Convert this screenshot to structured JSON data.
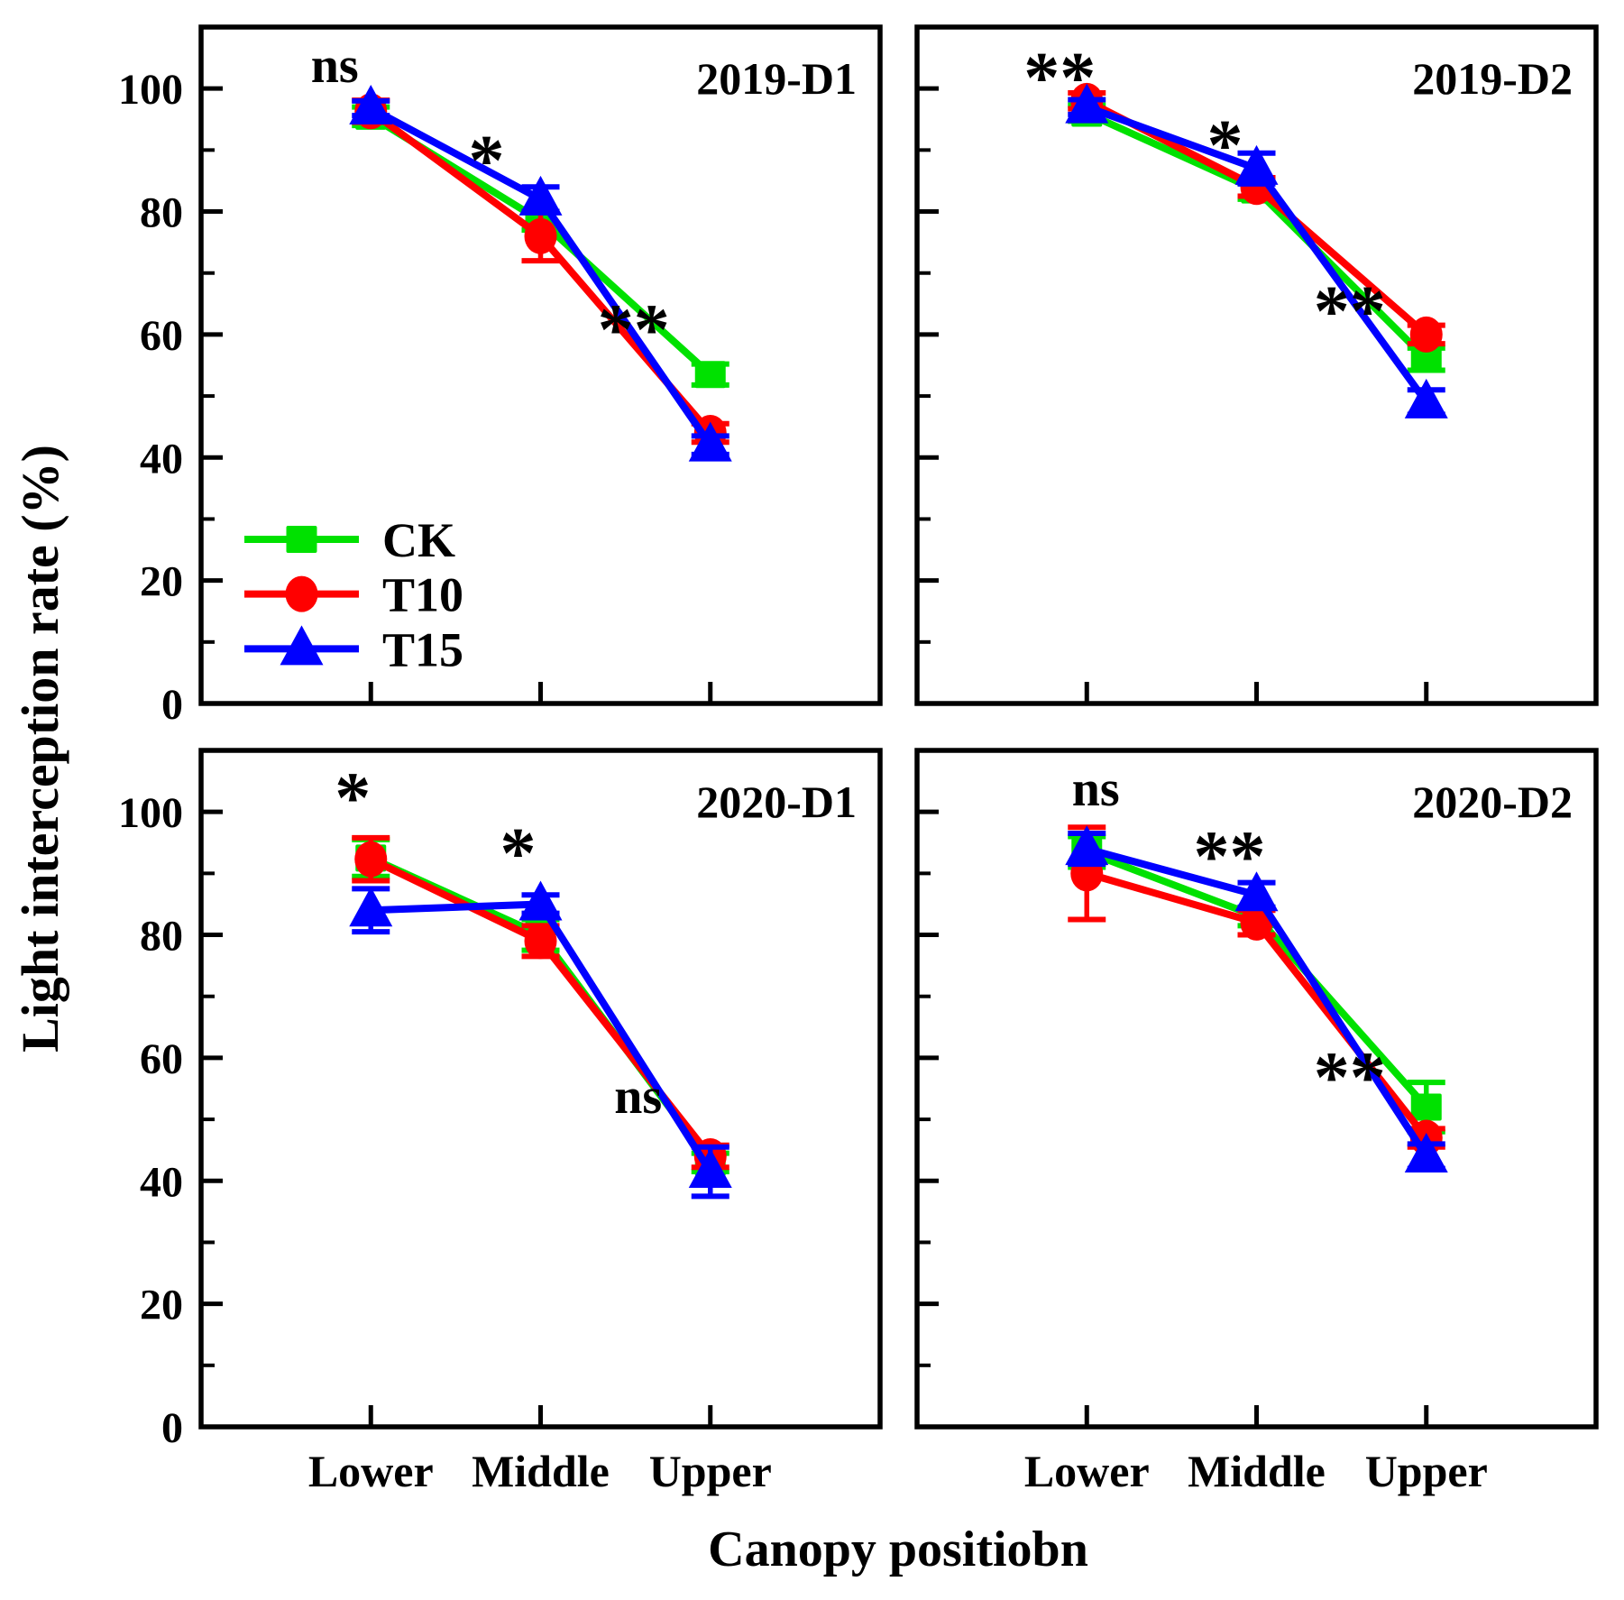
{
  "figure": {
    "background": "#ffffff",
    "y_axis_label": "Light interception rate (%)",
    "x_axis_label": "Canopy positiobn",
    "y_tick_labels": [
      "0",
      "20",
      "40",
      "60",
      "80",
      "100"
    ],
    "x_category_labels": [
      "Lower",
      "Middle",
      "Upper"
    ]
  },
  "legend": {
    "items": [
      {
        "label": "CK",
        "marker": "square",
        "color": "#00e100"
      },
      {
        "label": "T10",
        "marker": "circle",
        "color": "#ff0000"
      },
      {
        "label": "T15",
        "marker": "triangle",
        "color": "#0000ff"
      }
    ]
  },
  "chart_data": {
    "type": "line",
    "categories": [
      "Lower",
      "Middle",
      "Upper"
    ],
    "xlabel": "Canopy positiobn",
    "ylabel": "Light interception rate (%)",
    "ylim": [
      0,
      110
    ],
    "y_ticks": [
      0,
      20,
      40,
      60,
      80,
      100
    ],
    "y_minor_ticks": [
      10,
      30,
      50,
      70,
      90
    ],
    "grid": false,
    "error_bars": true,
    "legend_position": "inside-top-left-panel",
    "panels": [
      {
        "title": "2019-D1",
        "series": [
          {
            "name": "CK",
            "marker": "square",
            "color": "#00e100",
            "values": [
              95.5,
              78.5,
              53.5
            ],
            "errors": [
              1.5,
              1.5,
              1.7
            ]
          },
          {
            "name": "T10",
            "marker": "circle",
            "color": "#ff0000",
            "values": [
              96.3,
              76.0,
              44.0
            ],
            "errors": [
              1.8,
              4.0,
              1.5
            ]
          },
          {
            "name": "T15",
            "marker": "triangle",
            "color": "#0000ff",
            "values": [
              96.8,
              82.0,
              42.0
            ],
            "errors": [
              1.2,
              2.0,
              1.5
            ]
          }
        ],
        "significance": [
          {
            "label": "ns",
            "category": "Lower",
            "cat_index": 0,
            "y": 104,
            "dx": -40
          },
          {
            "label": "*",
            "category": "Middle",
            "cat_index": 1,
            "y": 90.5,
            "dx": -60
          },
          {
            "label": "**",
            "category": "Upper",
            "cat_index": 2,
            "y": 63,
            "dx": -85
          }
        ],
        "show_legend": true
      },
      {
        "title": "2019-D2",
        "series": [
          {
            "name": "CK",
            "marker": "square",
            "color": "#00e100",
            "values": [
              96.0,
              83.5,
              56.0
            ],
            "errors": [
              1.3,
              1.5,
              1.8
            ]
          },
          {
            "name": "T10",
            "marker": "circle",
            "color": "#ff0000",
            "values": [
              98.0,
              84.0,
              60.0
            ],
            "errors": [
              1.3,
              1.5,
              1.5
            ]
          },
          {
            "name": "T15",
            "marker": "triangle",
            "color": "#0000ff",
            "values": [
              97.0,
              87.0,
              49.0
            ],
            "errors": [
              1.2,
              2.5,
              2.0
            ]
          }
        ],
        "significance": [
          {
            "label": "**",
            "category": "Lower",
            "cat_index": 0,
            "y": 104,
            "dx": -30
          },
          {
            "label": "*",
            "category": "Middle",
            "cat_index": 1,
            "y": 93,
            "dx": -35
          },
          {
            "label": "**",
            "category": "Upper",
            "cat_index": 2,
            "y": 66,
            "dx": -85
          }
        ],
        "show_legend": false
      },
      {
        "title": "2020-D1",
        "series": [
          {
            "name": "CK",
            "marker": "square",
            "color": "#00e100",
            "values": [
              92.5,
              80.0,
              43.0
            ],
            "errors": [
              3.0,
              2.5,
              1.5
            ]
          },
          {
            "name": "T10",
            "marker": "circle",
            "color": "#ff0000",
            "values": [
              92.3,
              79.0,
              44.0
            ],
            "errors": [
              3.5,
              2.5,
              1.8
            ]
          },
          {
            "name": "T15",
            "marker": "triangle",
            "color": "#0000ff",
            "values": [
              84.0,
              85.0,
              41.5
            ],
            "errors": [
              3.5,
              1.5,
              4.0
            ]
          }
        ],
        "significance": [
          {
            "label": "*",
            "category": "Lower",
            "cat_index": 0,
            "y": 104.5,
            "dx": -20
          },
          {
            "label": "*",
            "category": "Middle",
            "cat_index": 1,
            "y": 95.5,
            "dx": -25
          },
          {
            "label": "ns",
            "category": "Upper",
            "cat_index": 2,
            "y": 54,
            "dx": -80
          }
        ],
        "show_legend": false
      },
      {
        "title": "2020-D2",
        "series": [
          {
            "name": "CK",
            "marker": "square",
            "color": "#00e100",
            "values": [
              93.5,
              83.0,
              52.0
            ],
            "errors": [
              2.5,
              1.5,
              4.0
            ]
          },
          {
            "name": "T10",
            "marker": "circle",
            "color": "#ff0000",
            "values": [
              90.0,
              82.0,
              47.0
            ],
            "errors": [
              7.5,
              2.0,
              1.5
            ]
          },
          {
            "name": "T15",
            "marker": "triangle",
            "color": "#0000ff",
            "values": [
              94.0,
              86.5,
              44.0
            ],
            "errors": [
              2.5,
              2.0,
              2.0
            ]
          }
        ],
        "significance": [
          {
            "label": "ns",
            "category": "Lower",
            "cat_index": 0,
            "y": 104,
            "dx": 10
          },
          {
            "label": "**",
            "category": "Middle",
            "cat_index": 1,
            "y": 95,
            "dx": -30
          },
          {
            "label": "**",
            "category": "Upper",
            "cat_index": 2,
            "y": 59,
            "dx": -85
          }
        ],
        "show_legend": false
      }
    ]
  }
}
